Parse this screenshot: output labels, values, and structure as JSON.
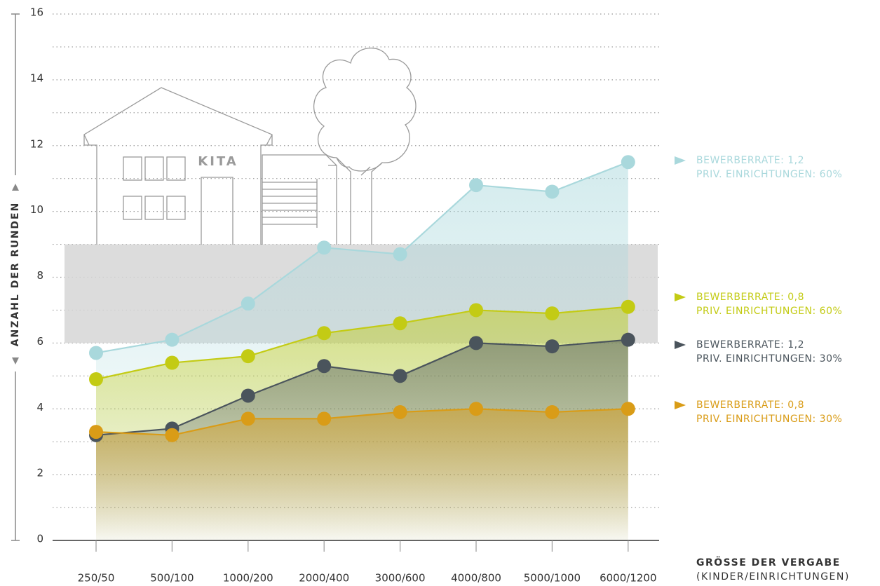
{
  "chart_data": {
    "type": "line",
    "categories": [
      "250/50",
      "500/100",
      "1000/200",
      "2000/400",
      "3000/600",
      "4000/800",
      "5000/1000",
      "6000/1200"
    ],
    "ylabel": "ANZAHL DER RUNDEN",
    "xlabel": "GRÖSSE DER VERGABE",
    "xlabel_sub": "(KINDER/EINRICHTUNGEN)",
    "illustration_text": "KITA",
    "ylim": [
      0,
      16
    ],
    "yticks": [
      0,
      2,
      4,
      6,
      8,
      10,
      12,
      14,
      16
    ],
    "yminor": [
      1,
      3,
      5,
      7,
      9,
      11,
      13,
      15
    ],
    "grid": true,
    "highlight_band": [
      6,
      9
    ],
    "series": [
      {
        "name": [
          "BEWERBERRATE: 1,2",
          "PRIV. EINRICHTUNGEN: 60%"
        ],
        "color": "#a9d8dc",
        "values": [
          5.7,
          6.1,
          7.2,
          8.9,
          8.7,
          10.8,
          10.6,
          11.5
        ]
      },
      {
        "name": [
          "BEWERBERRATE: 0,8",
          "PRIV. EINRICHTUNGEN: 60%"
        ],
        "color": "#c3cb14",
        "values": [
          4.9,
          5.4,
          5.6,
          6.3,
          6.6,
          7.0,
          6.9,
          7.1
        ]
      },
      {
        "name": [
          "BEWERBERRATE: 1,2",
          "PRIV. EINRICHTUNGEN: 30%"
        ],
        "color": "#4a545c",
        "values": [
          3.2,
          3.4,
          4.4,
          5.3,
          5.0,
          6.0,
          5.9,
          6.1
        ]
      },
      {
        "name": [
          "BEWERBERRATE: 0,8",
          "PRIV. EINRICHTUNGEN: 30%"
        ],
        "color": "#d99c17",
        "values": [
          3.3,
          3.2,
          3.7,
          3.7,
          3.9,
          4.0,
          3.9,
          4.0
        ]
      }
    ]
  }
}
